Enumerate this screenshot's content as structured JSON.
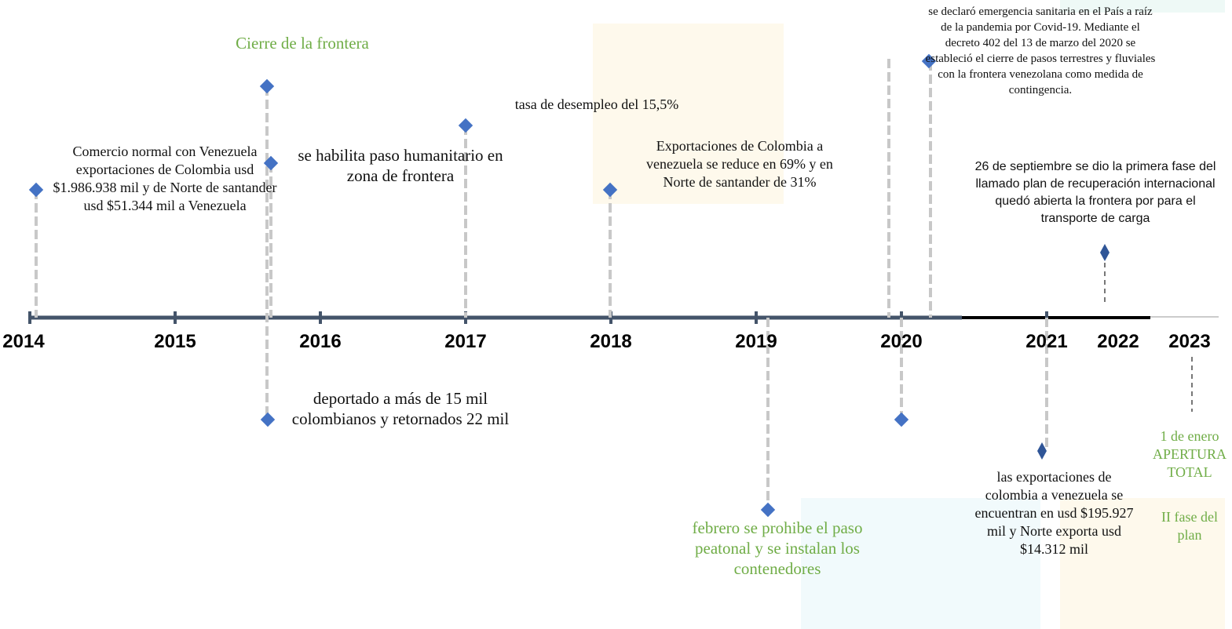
{
  "years": [
    "2014",
    "2015",
    "2016",
    "2017",
    "2018",
    "2019",
    "2020",
    "2021",
    "2022",
    "2023"
  ],
  "events": [
    {
      "text": "Comercio normal con Venezuela exportaciones de Colombia usd $1.986.938 mil y de Norte de santander usd $51.344 mil a Venezuela"
    },
    {
      "text": "Cierre de la frontera"
    },
    {
      "text": "se habilita paso humanitario en zona de frontera"
    },
    {
      "text": "deportado a más de 15 mil colombianos y retornados 22 mil"
    },
    {
      "text": "tasa de desempleo del 15,5%"
    },
    {
      "text": "Exportaciones de Colombia a venezuela se reduce en 69% y en Norte de santander de 31%"
    },
    {
      "text": "febrero se prohibe el paso peatonal y se instalan los contenedores"
    },
    {
      "text": "se declaró emergencia sanitaria en el País a raíz de la pandemia por Covid-19. Mediante el decreto 402 del 13 de marzo del 2020 se estableció el cierre de pasos terrestres y fluviales con la frontera venezolana como medida de contingencia."
    },
    {
      "text": "26 de septiembre se dio la primera fase del llamado plan de recuperación internacional quedó abierta la frontera por para el transporte de carga"
    },
    {
      "text": "las exportaciones de colombia a venezuela se encuentran en usd $195.927 mil y Norte exporta usd $14.312 mil"
    },
    {
      "text": "1 de enero APERTURA TOTAL"
    },
    {
      "text": "II fase del plan"
    }
  ]
}
